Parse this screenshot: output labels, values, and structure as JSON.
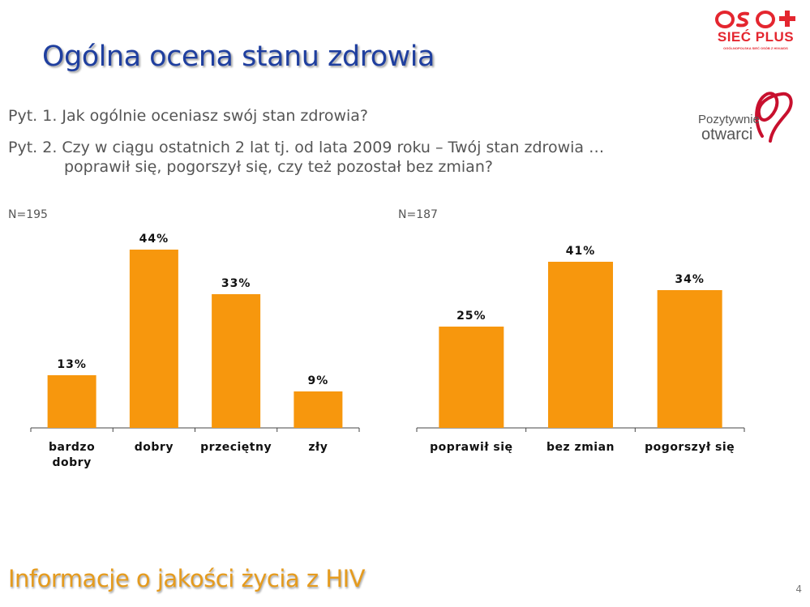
{
  "slide": {
    "title": "Ogólna ocena stanu zdrowia",
    "question1": "Pyt. 1. Jak ogólnie oceniasz swój stan zdrowia?",
    "question2_line1": "Pyt. 2. Czy w ciągu ostatnich 2 lat tj. od lata 2009 roku – Twój stan zdrowia …",
    "question2_line2": "poprawił się, pogorszył się, czy też pozostał bez zmian?",
    "footer": "Informacje o jakości życia z HIV",
    "page_number": "4"
  },
  "logos": {
    "siec_plus": {
      "text": "SIEĆ PLUS",
      "subtitle": "OGÓLNOPOLSKA SIEĆ OSÓB Z HIV/AIDS",
      "color": "#e4262f"
    },
    "pozytywnie": {
      "line1": "Pozytywnie",
      "line2": "otwarci",
      "ribbon_color": "#c8102e"
    }
  },
  "colors": {
    "bar": "#f7970d",
    "title": "#1f3f9f",
    "footer": "#e59b1e",
    "axis": "#444444"
  },
  "chart_data": [
    {
      "type": "bar",
      "sample": "N=195",
      "categories": [
        [
          "bardzo",
          "dobry"
        ],
        [
          "dobry"
        ],
        [
          "przeciętny"
        ],
        [
          "zły"
        ]
      ],
      "values": [
        13,
        44,
        33,
        9
      ],
      "value_labels": [
        "13%",
        "44%",
        "33%",
        "9%"
      ],
      "ylim": [
        0,
        60
      ],
      "unit": "%"
    },
    {
      "type": "bar",
      "sample": "N=187",
      "categories": [
        [
          "poprawił się"
        ],
        [
          "bez zmian"
        ],
        [
          "pogorszył się"
        ]
      ],
      "values": [
        25,
        41,
        34
      ],
      "value_labels": [
        "25%",
        "41%",
        "34%"
      ],
      "ylim": [
        0,
        60
      ],
      "unit": "%"
    }
  ]
}
